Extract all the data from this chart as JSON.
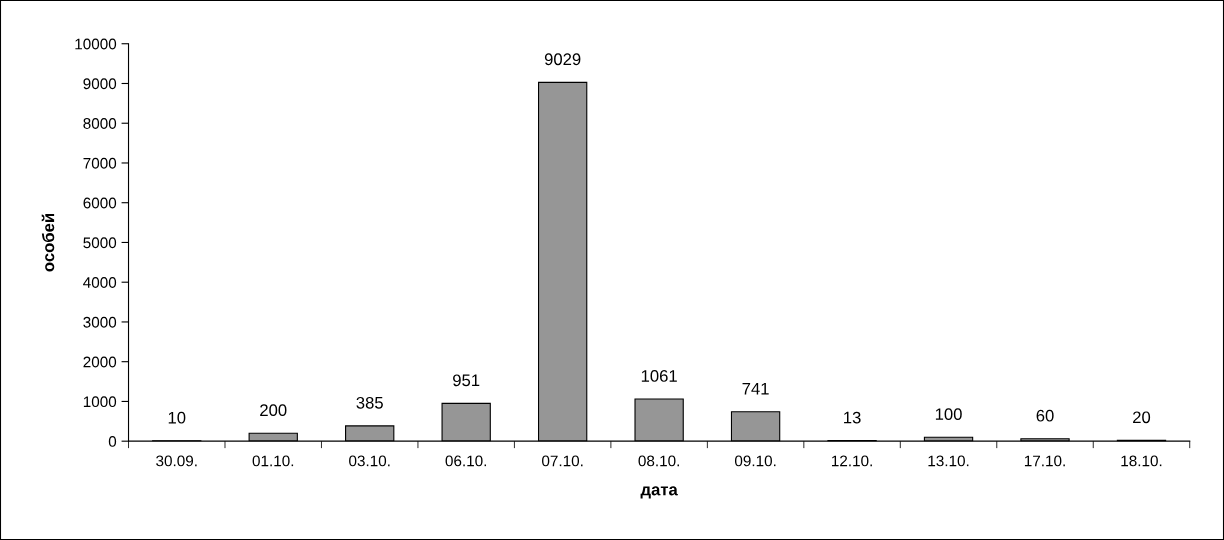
{
  "chart_data": {
    "type": "bar",
    "xlabel": "дата",
    "ylabel": "особей",
    "categories": [
      "30.09.",
      "01.10.",
      "03.10.",
      "06.10.",
      "07.10.",
      "08.10.",
      "09.10.",
      "12.10.",
      "13.10.",
      "17.10.",
      "18.10."
    ],
    "values": [
      10,
      200,
      385,
      951,
      9029,
      1061,
      741,
      13,
      100,
      60,
      20
    ],
    "color": "#969696",
    "ylim": [
      0,
      10000
    ],
    "yticks": [
      0,
      1000,
      2000,
      3000,
      4000,
      5000,
      6000,
      7000,
      8000,
      9000,
      10000
    ],
    "grid": false,
    "data_labels": true
  }
}
